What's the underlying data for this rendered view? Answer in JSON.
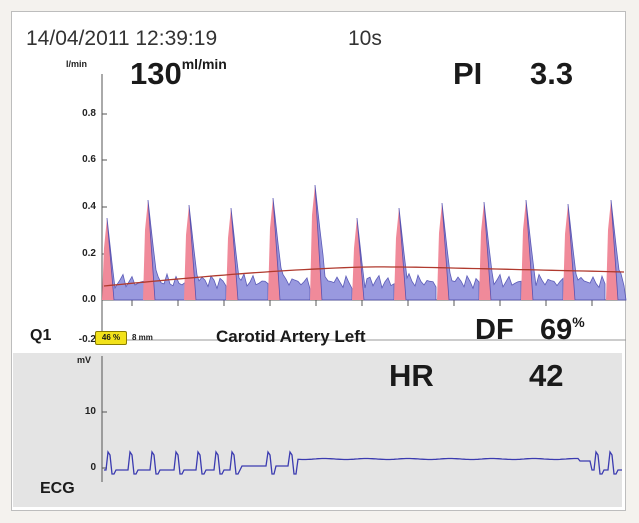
{
  "header": {
    "datetime": "14/04/2011 12:39:19",
    "duration": "10s"
  },
  "flow_panel": {
    "y_unit": "l/min",
    "flow_value": "130",
    "flow_unit": "ml/min",
    "pi_label": "PI",
    "pi_value": "3.3",
    "y_ticks": [
      "0.8",
      "0.6",
      "0.4",
      "0.2",
      "0.0",
      "-0.2"
    ]
  },
  "info_row": {
    "channel": "Q1",
    "badge": "46 %",
    "probe_size": "8 mm",
    "vessel": "Carotid Artery Left",
    "df_label": "DF",
    "df_value": "69",
    "df_unit": "%"
  },
  "ecg_panel": {
    "y_unit": "mV",
    "hr_label": "HR",
    "hr_value": "42",
    "y_ticks": [
      "10",
      "0"
    ],
    "trace_label": "ECG"
  },
  "colors": {
    "flow_fill_systolic": "#f08a9a",
    "flow_fill_diastolic": "#8f8fdc",
    "flow_outline": "#4a4ab0",
    "mean_trend": "#b03a2e",
    "ecg_trace": "#3b3bb0",
    "badge": "#f2e21a"
  }
}
